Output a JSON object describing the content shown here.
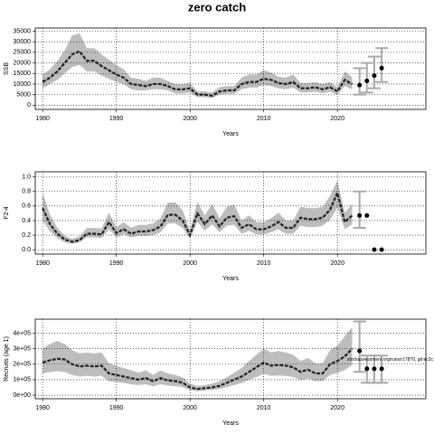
{
  "chart_data": [
    {
      "type": "line",
      "title": "zero catch",
      "ylabel": "SSB",
      "xlabel": "Years",
      "grid": true,
      "xlim": [
        1979,
        2032
      ],
      "xticks": [
        1980,
        1990,
        2000,
        2010,
        2020
      ],
      "ylim": [
        -2000,
        36500
      ],
      "yticks": [
        0,
        5000,
        10000,
        15000,
        20000,
        25000,
        30000,
        35000
      ],
      "x": [
        1980,
        1981,
        1982,
        1983,
        1984,
        1985,
        1986,
        1987,
        1988,
        1989,
        1990,
        1991,
        1992,
        1993,
        1994,
        1995,
        1996,
        1997,
        1998,
        1999,
        2000,
        2001,
        2002,
        2003,
        2004,
        2005,
        2006,
        2007,
        2008,
        2009,
        2010,
        2011,
        2012,
        2013,
        2014,
        2015,
        2016,
        2017,
        2018,
        2019,
        2020,
        2021,
        2022
      ],
      "series": [
        {
          "color": "#222222",
          "values": [
            11000,
            13000,
            16000,
            20000,
            24000,
            25500,
            21000,
            21000,
            18500,
            16500,
            14500,
            13000,
            10000,
            9500,
            9000,
            10000,
            10000,
            9000,
            7500,
            7500,
            8000,
            5000,
            5000,
            4500,
            6500,
            7000,
            7000,
            10000,
            11000,
            11000,
            12500,
            12000,
            10500,
            10000,
            11000,
            8000,
            8000,
            8500,
            7500,
            8500,
            6500,
            12000,
            10000
          ]
        }
      ],
      "band": {
        "color": "#bdbdbd",
        "lower": [
          8000,
          10000,
          12000,
          15000,
          18000,
          19000,
          16000,
          16000,
          14000,
          12500,
          11000,
          10000,
          7500,
          7000,
          7000,
          7500,
          7500,
          7000,
          5500,
          5500,
          6000,
          3800,
          3800,
          3400,
          5000,
          5300,
          5300,
          7500,
          8300,
          8300,
          9500,
          9000,
          8000,
          7500,
          8300,
          6000,
          6000,
          6400,
          5600,
          6400,
          4900,
          9000,
          7500
        ],
        "upper": [
          14500,
          17000,
          21000,
          26000,
          33000,
          34000,
          27000,
          27000,
          24000,
          21500,
          19000,
          17000,
          13000,
          12500,
          11500,
          13000,
          13000,
          11500,
          10000,
          10000,
          10500,
          6500,
          6500,
          6000,
          8500,
          9000,
          9000,
          13000,
          14500,
          14500,
          16500,
          15500,
          13500,
          13000,
          14500,
          10500,
          10500,
          11000,
          10000,
          11000,
          8500,
          16000,
          13000
        ]
      },
      "forecast": {
        "color": "#000000",
        "bar_color": "#aaaaaa",
        "x": [
          2023,
          2024,
          2025,
          2026
        ],
        "values": [
          9500,
          11500,
          14000,
          17500
        ],
        "lower": [
          5000,
          6000,
          8000,
          11000
        ],
        "upper": [
          17500,
          20000,
          23000,
          27000
        ]
      }
    },
    {
      "type": "line",
      "ylabel": "F2-4",
      "xlabel": "Years",
      "grid": true,
      "xlim": [
        1979,
        2032
      ],
      "xticks": [
        1980,
        1990,
        2000,
        2010,
        2020
      ],
      "ylim": [
        -0.06,
        1.07
      ],
      "yticks": [
        {
          "value": 0,
          "label": "0.0"
        },
        0.2,
        0.4,
        0.6,
        0.8,
        {
          "value": 1,
          "label": "1.0"
        }
      ],
      "x": [
        1980,
        1981,
        1982,
        1983,
        1984,
        1985,
        1986,
        1987,
        1988,
        1989,
        1990,
        1991,
        1992,
        1993,
        1994,
        1995,
        1996,
        1997,
        1998,
        1999,
        2000,
        2001,
        2002,
        2003,
        2004,
        2005,
        2006,
        2007,
        2008,
        2009,
        2010,
        2011,
        2012,
        2013,
        2014,
        2015,
        2016,
        2017,
        2018,
        2019,
        2020,
        2021,
        2022
      ],
      "series": [
        {
          "color": "#222222",
          "values": [
            0.57,
            0.35,
            0.22,
            0.14,
            0.11,
            0.13,
            0.22,
            0.22,
            0.21,
            0.38,
            0.23,
            0.28,
            0.22,
            0.25,
            0.25,
            0.27,
            0.32,
            0.48,
            0.48,
            0.4,
            0.2,
            0.5,
            0.35,
            0.47,
            0.32,
            0.44,
            0.46,
            0.3,
            0.35,
            0.28,
            0.28,
            0.32,
            0.38,
            0.3,
            0.3,
            0.44,
            0.42,
            0.42,
            0.44,
            0.55,
            0.78,
            0.38,
            0.47
          ]
        }
      ],
      "band": {
        "color": "#bdbdbd",
        "lower": [
          0.4,
          0.25,
          0.16,
          0.1,
          0.08,
          0.1,
          0.17,
          0.17,
          0.16,
          0.28,
          0.17,
          0.21,
          0.17,
          0.19,
          0.19,
          0.2,
          0.24,
          0.36,
          0.36,
          0.3,
          0.15,
          0.38,
          0.26,
          0.35,
          0.24,
          0.33,
          0.34,
          0.22,
          0.26,
          0.21,
          0.21,
          0.24,
          0.28,
          0.22,
          0.22,
          0.33,
          0.31,
          0.31,
          0.33,
          0.41,
          0.58,
          0.28,
          0.35
        ],
        "upper": [
          0.78,
          0.48,
          0.3,
          0.19,
          0.15,
          0.18,
          0.3,
          0.3,
          0.29,
          0.51,
          0.31,
          0.38,
          0.3,
          0.34,
          0.34,
          0.36,
          0.43,
          0.65,
          0.65,
          0.54,
          0.27,
          0.66,
          0.47,
          0.63,
          0.43,
          0.59,
          0.62,
          0.4,
          0.47,
          0.38,
          0.38,
          0.43,
          0.51,
          0.4,
          0.4,
          0.59,
          0.57,
          0.57,
          0.59,
          0.74,
          0.95,
          0.51,
          0.63
        ]
      },
      "forecast": {
        "color": "#000000",
        "bar_color": "#aaaaaa",
        "x": [
          2023,
          2024,
          2025,
          2026
        ],
        "values": [
          0.47,
          0.47,
          0,
          0
        ],
        "lower": [
          0.3,
          null,
          null,
          null
        ],
        "upper": [
          0.8,
          null,
          null,
          null
        ]
      }
    },
    {
      "type": "line",
      "ylabel": "Recruits (age 1)",
      "xlabel": "Years",
      "grid": true,
      "annotation": "stockassessment.org/runs/r17870, git:ec2c",
      "xlim": [
        1979,
        2032
      ],
      "xticks": [
        1980,
        1990,
        2000,
        2010,
        2020
      ],
      "ylim": [
        -23000,
        490000
      ],
      "yticks": [
        {
          "value": 0,
          "label": "0e+00"
        },
        {
          "value": 100000,
          "label": "1e+05"
        },
        {
          "value": 200000,
          "label": "2e+05"
        },
        {
          "value": 300000,
          "label": "3e+05"
        },
        {
          "value": 400000,
          "label": "4e+05"
        }
      ],
      "x": [
        1980,
        1981,
        1982,
        1983,
        1984,
        1985,
        1986,
        1987,
        1988,
        1989,
        1990,
        1991,
        1992,
        1993,
        1994,
        1995,
        1996,
        1997,
        1998,
        1999,
        2000,
        2001,
        2002,
        2003,
        2004,
        2005,
        2006,
        2007,
        2008,
        2009,
        2010,
        2011,
        2012,
        2013,
        2014,
        2015,
        2016,
        2017,
        2018,
        2019,
        2020,
        2021,
        2022
      ],
      "series": [
        {
          "color": "#222222",
          "values": [
            210000,
            225000,
            235000,
            230000,
            200000,
            185000,
            190000,
            185000,
            190000,
            140000,
            130000,
            120000,
            110000,
            100000,
            110000,
            90000,
            110000,
            95000,
            90000,
            80000,
            50000,
            40000,
            45000,
            50000,
            60000,
            80000,
            100000,
            120000,
            150000,
            180000,
            210000,
            190000,
            195000,
            190000,
            180000,
            150000,
            165000,
            140000,
            140000,
            200000,
            220000,
            250000,
            300000
          ]
        }
      ],
      "band": {
        "color": "#bdbdbd",
        "lower": [
          140000,
          150000,
          155000,
          150000,
          130000,
          120000,
          125000,
          120000,
          125000,
          90000,
          85000,
          78000,
          70000,
          65000,
          70000,
          58000,
          70000,
          62000,
          58000,
          52000,
          32000,
          26000,
          30000,
          33000,
          40000,
          52000,
          65000,
          78000,
          98000,
          117000,
          137000,
          124000,
          127000,
          124000,
          117000,
          98000,
          107000,
          91000,
          91000,
          130000,
          143000,
          163000,
          195000
        ],
        "upper": [
          300000,
          330000,
          350000,
          330000,
          290000,
          270000,
          275000,
          270000,
          275000,
          205000,
          190000,
          175000,
          160000,
          145000,
          160000,
          130000,
          160000,
          140000,
          130000,
          115000,
          75000,
          60000,
          65000,
          75000,
          90000,
          115000,
          145000,
          175000,
          220000,
          260000,
          300000,
          275000,
          285000,
          275000,
          260000,
          220000,
          240000,
          205000,
          205000,
          290000,
          320000,
          380000,
          440000
        ]
      },
      "forecast": {
        "color": "#000000",
        "bar_color": "#aaaaaa",
        "x": [
          2023,
          2024,
          2025,
          2026
        ],
        "values": [
          285000,
          170000,
          170000,
          170000
        ],
        "lower": [
          150000,
          80000,
          80000,
          80000
        ],
        "upper": [
          475000,
          255000,
          255000,
          255000
        ]
      }
    }
  ]
}
